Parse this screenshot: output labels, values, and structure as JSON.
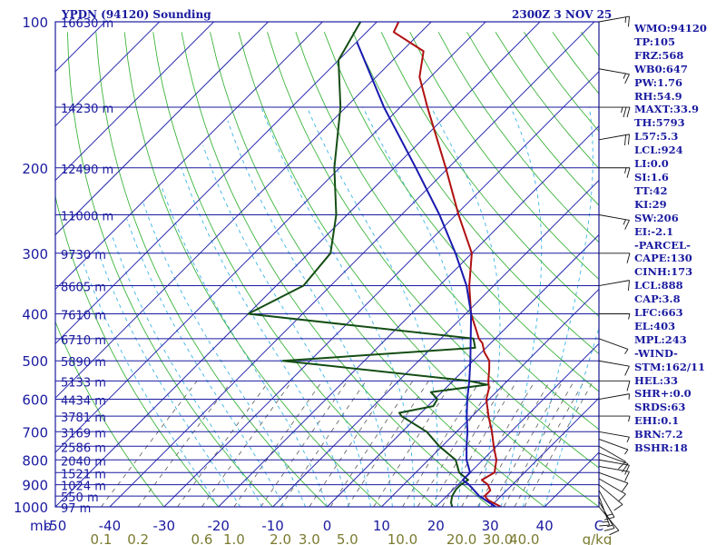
{
  "header": {
    "station": "YPDN (94120) Sounding",
    "valid": "2300Z  3 NOV 25"
  },
  "indices": [
    "WMO:94120",
    "TP:105",
    "FRZ:568",
    "WB0:647",
    "PW:1.76",
    "RH:54.9",
    "MAXT:33.9",
    "TH:5793",
    "L57:5.3",
    "LCL:924",
    "LI:0.0",
    "SI:1.6",
    "TT:42",
    "KI:29",
    "SW:206",
    "EI:-2.1",
    "-PARCEL-",
    "CAPE:130",
    "CINH:173",
    "LCL:888",
    "CAP:3.8",
    "LFC:663",
    "EL:403",
    "MPL:243",
    "-WIND-",
    "STM:162/11",
    "HEL:33",
    "SHR+:0.0",
    "SRDS:63",
    "EHI:0.1",
    "BRN:7.2",
    "BSHR:18"
  ],
  "chart_data": {
    "type": "line",
    "title": "YPDN (94120) Sounding",
    "xlabel": "C",
    "ylabel": "mb",
    "x_range": [
      -50,
      50
    ],
    "y_range_mb": [
      1000,
      100
    ],
    "y_scale": "log",
    "grid": true,
    "skew": "45 degrees",
    "pressure_ticks": [
      "100",
      "200",
      "300",
      "400",
      "500",
      "600",
      "700",
      "800",
      "900",
      "1000"
    ],
    "pressure_ticks_mb": [
      100,
      200,
      300,
      400,
      500,
      600,
      700,
      800,
      900,
      1000
    ],
    "height_labels": [
      {
        "mb": 100,
        "label": "16630 m"
      },
      {
        "mb": 150,
        "label": "14230 m"
      },
      {
        "mb": 200,
        "label": "12490 m"
      },
      {
        "mb": 250,
        "label": "11000 m"
      },
      {
        "mb": 300,
        "label": "9730 m"
      },
      {
        "mb": 350,
        "label": "8605 m"
      },
      {
        "mb": 400,
        "label": "7610 m"
      },
      {
        "mb": 450,
        "label": "6710 m"
      },
      {
        "mb": 500,
        "label": "5890 m"
      },
      {
        "mb": 550,
        "label": "5133 m"
      },
      {
        "mb": 600,
        "label": "4434 m"
      },
      {
        "mb": 650,
        "label": "3781 m"
      },
      {
        "mb": 700,
        "label": "3169 m"
      },
      {
        "mb": 750,
        "label": "2586 m"
      },
      {
        "mb": 800,
        "label": "2040 m"
      },
      {
        "mb": 850,
        "label": "1521 m"
      },
      {
        "mb": 900,
        "label": "1024 m"
      },
      {
        "mb": 950,
        "label": "550 m"
      },
      {
        "mb": 1000,
        "label": "97 m"
      }
    ],
    "temp_ticks": [
      "-50",
      "-40",
      "-30",
      "-20",
      "-10",
      "0",
      "10",
      "20",
      "30",
      "40",
      "C"
    ],
    "temp_tick_values": [
      -50,
      -40,
      -30,
      -20,
      -10,
      0,
      10,
      20,
      30,
      40,
      50
    ],
    "mixing_ratio_ticks": [
      "0.1",
      "0.2",
      "0.6",
      "1.0",
      "2.0",
      "3.0",
      "5.0",
      "10.0",
      "20.0",
      "30.0",
      "40.0",
      "g/kg"
    ],
    "mixing_ratio_values": [
      0.1,
      0.2,
      0.6,
      1.0,
      2.0,
      3.0,
      5.0,
      10.0,
      20.0,
      30.0,
      40.0
    ],
    "series": [
      {
        "id": "temperature",
        "color": "#b01010",
        "points": [
          [
            1000,
            32
          ],
          [
            970,
            28.5
          ],
          [
            950,
            27
          ],
          [
            925,
            27
          ],
          [
            900,
            25.5
          ],
          [
            880,
            23.5
          ],
          [
            850,
            24.5
          ],
          [
            800,
            22.5
          ],
          [
            750,
            19.5
          ],
          [
            700,
            16.5
          ],
          [
            650,
            13
          ],
          [
            600,
            9.5
          ],
          [
            570,
            8
          ],
          [
            550,
            6.5
          ],
          [
            520,
            4.5
          ],
          [
            500,
            3
          ],
          [
            480,
            0.5
          ],
          [
            460,
            -1.5
          ],
          [
            450,
            -3
          ],
          [
            400,
            -9
          ],
          [
            350,
            -14.5
          ],
          [
            300,
            -20
          ],
          [
            250,
            -29.5
          ],
          [
            200,
            -40.5
          ],
          [
            150,
            -55
          ],
          [
            130,
            -62
          ],
          [
            115,
            -66
          ],
          [
            105,
            -75
          ],
          [
            100,
            -76
          ]
        ]
      },
      {
        "id": "dewpoint",
        "color": "#144d14",
        "points": [
          [
            1000,
            23
          ],
          [
            980,
            22
          ],
          [
            950,
            21
          ],
          [
            920,
            20.5
          ],
          [
            900,
            20.5
          ],
          [
            880,
            21
          ],
          [
            850,
            18
          ],
          [
            800,
            15
          ],
          [
            750,
            9.5
          ],
          [
            700,
            4.5
          ],
          [
            650,
            -3
          ],
          [
            640,
            -4
          ],
          [
            620,
            1
          ],
          [
            600,
            0.5
          ],
          [
            580,
            -2
          ],
          [
            560,
            7
          ],
          [
            550,
            3
          ],
          [
            500,
            -35
          ],
          [
            470,
            -2
          ],
          [
            450,
            -4
          ],
          [
            400,
            -50
          ],
          [
            350,
            -45
          ],
          [
            300,
            -46
          ],
          [
            250,
            -52
          ],
          [
            200,
            -61
          ],
          [
            150,
            -71
          ],
          [
            120,
            -80
          ],
          [
            100,
            -83
          ]
        ]
      },
      {
        "id": "parcel",
        "color": "#1a1ab0",
        "points": [
          [
            1000,
            31
          ],
          [
            950,
            26
          ],
          [
            900,
            22
          ],
          [
            880,
            20
          ],
          [
            850,
            20
          ],
          [
            800,
            17
          ],
          [
            750,
            14.5
          ],
          [
            700,
            12
          ],
          [
            650,
            9
          ],
          [
            600,
            6
          ],
          [
            550,
            3
          ],
          [
            500,
            -0.5
          ],
          [
            450,
            -4.5
          ],
          [
            400,
            -9
          ],
          [
            350,
            -15
          ],
          [
            300,
            -23
          ],
          [
            250,
            -33
          ],
          [
            200,
            -46
          ],
          [
            150,
            -63
          ],
          [
            110,
            -80
          ]
        ]
      }
    ],
    "wind_barbs": [
      {
        "mb": 1000,
        "dir": 140,
        "kt": 10
      },
      {
        "mb": 975,
        "dir": 150,
        "kt": 15
      },
      {
        "mb": 950,
        "dir": 160,
        "kt": 15
      },
      {
        "mb": 925,
        "dir": 150,
        "kt": 15
      },
      {
        "mb": 900,
        "dir": 130,
        "kt": 10
      },
      {
        "mb": 875,
        "dir": 120,
        "kt": 10
      },
      {
        "mb": 850,
        "dir": 110,
        "kt": 10
      },
      {
        "mb": 825,
        "dir": 100,
        "kt": 10
      },
      {
        "mb": 800,
        "dir": 100,
        "kt": 10
      },
      {
        "mb": 775,
        "dir": 110,
        "kt": 10
      },
      {
        "mb": 750,
        "dir": 120,
        "kt": 10
      },
      {
        "mb": 725,
        "dir": 110,
        "kt": 5
      },
      {
        "mb": 700,
        "dir": 100,
        "kt": 5
      },
      {
        "mb": 650,
        "dir": 90,
        "kt": 5
      },
      {
        "mb": 600,
        "dir": 80,
        "kt": 5
      },
      {
        "mb": 550,
        "dir": 90,
        "kt": 10
      },
      {
        "mb": 500,
        "dir": 100,
        "kt": 10
      },
      {
        "mb": 450,
        "dir": 110,
        "kt": 5
      },
      {
        "mb": 400,
        "dir": 90,
        "kt": 5
      },
      {
        "mb": 350,
        "dir": 80,
        "kt": 10
      },
      {
        "mb": 300,
        "dir": 90,
        "kt": 10
      },
      {
        "mb": 250,
        "dir": 100,
        "kt": 15
      },
      {
        "mb": 200,
        "dir": 90,
        "kt": 15
      },
      {
        "mb": 175,
        "dir": 80,
        "kt": 20
      },
      {
        "mb": 150,
        "dir": 90,
        "kt": 25
      },
      {
        "mb": 125,
        "dir": 100,
        "kt": 15
      },
      {
        "mb": 100,
        "dir": 80,
        "kt": 15
      }
    ],
    "colors": {
      "frame": "#1a1aa0",
      "isobar": "#1a1aa0",
      "isotherm": "#2a2ab0",
      "dry_adiabat": "#3cb43c",
      "moist_adiabat": "#3cb4e6",
      "mixing_ratio": "#5a5a5a",
      "mixing_ratio_label": "#7a7a30",
      "wind": "#111111",
      "text": "#1a1aa0"
    }
  }
}
